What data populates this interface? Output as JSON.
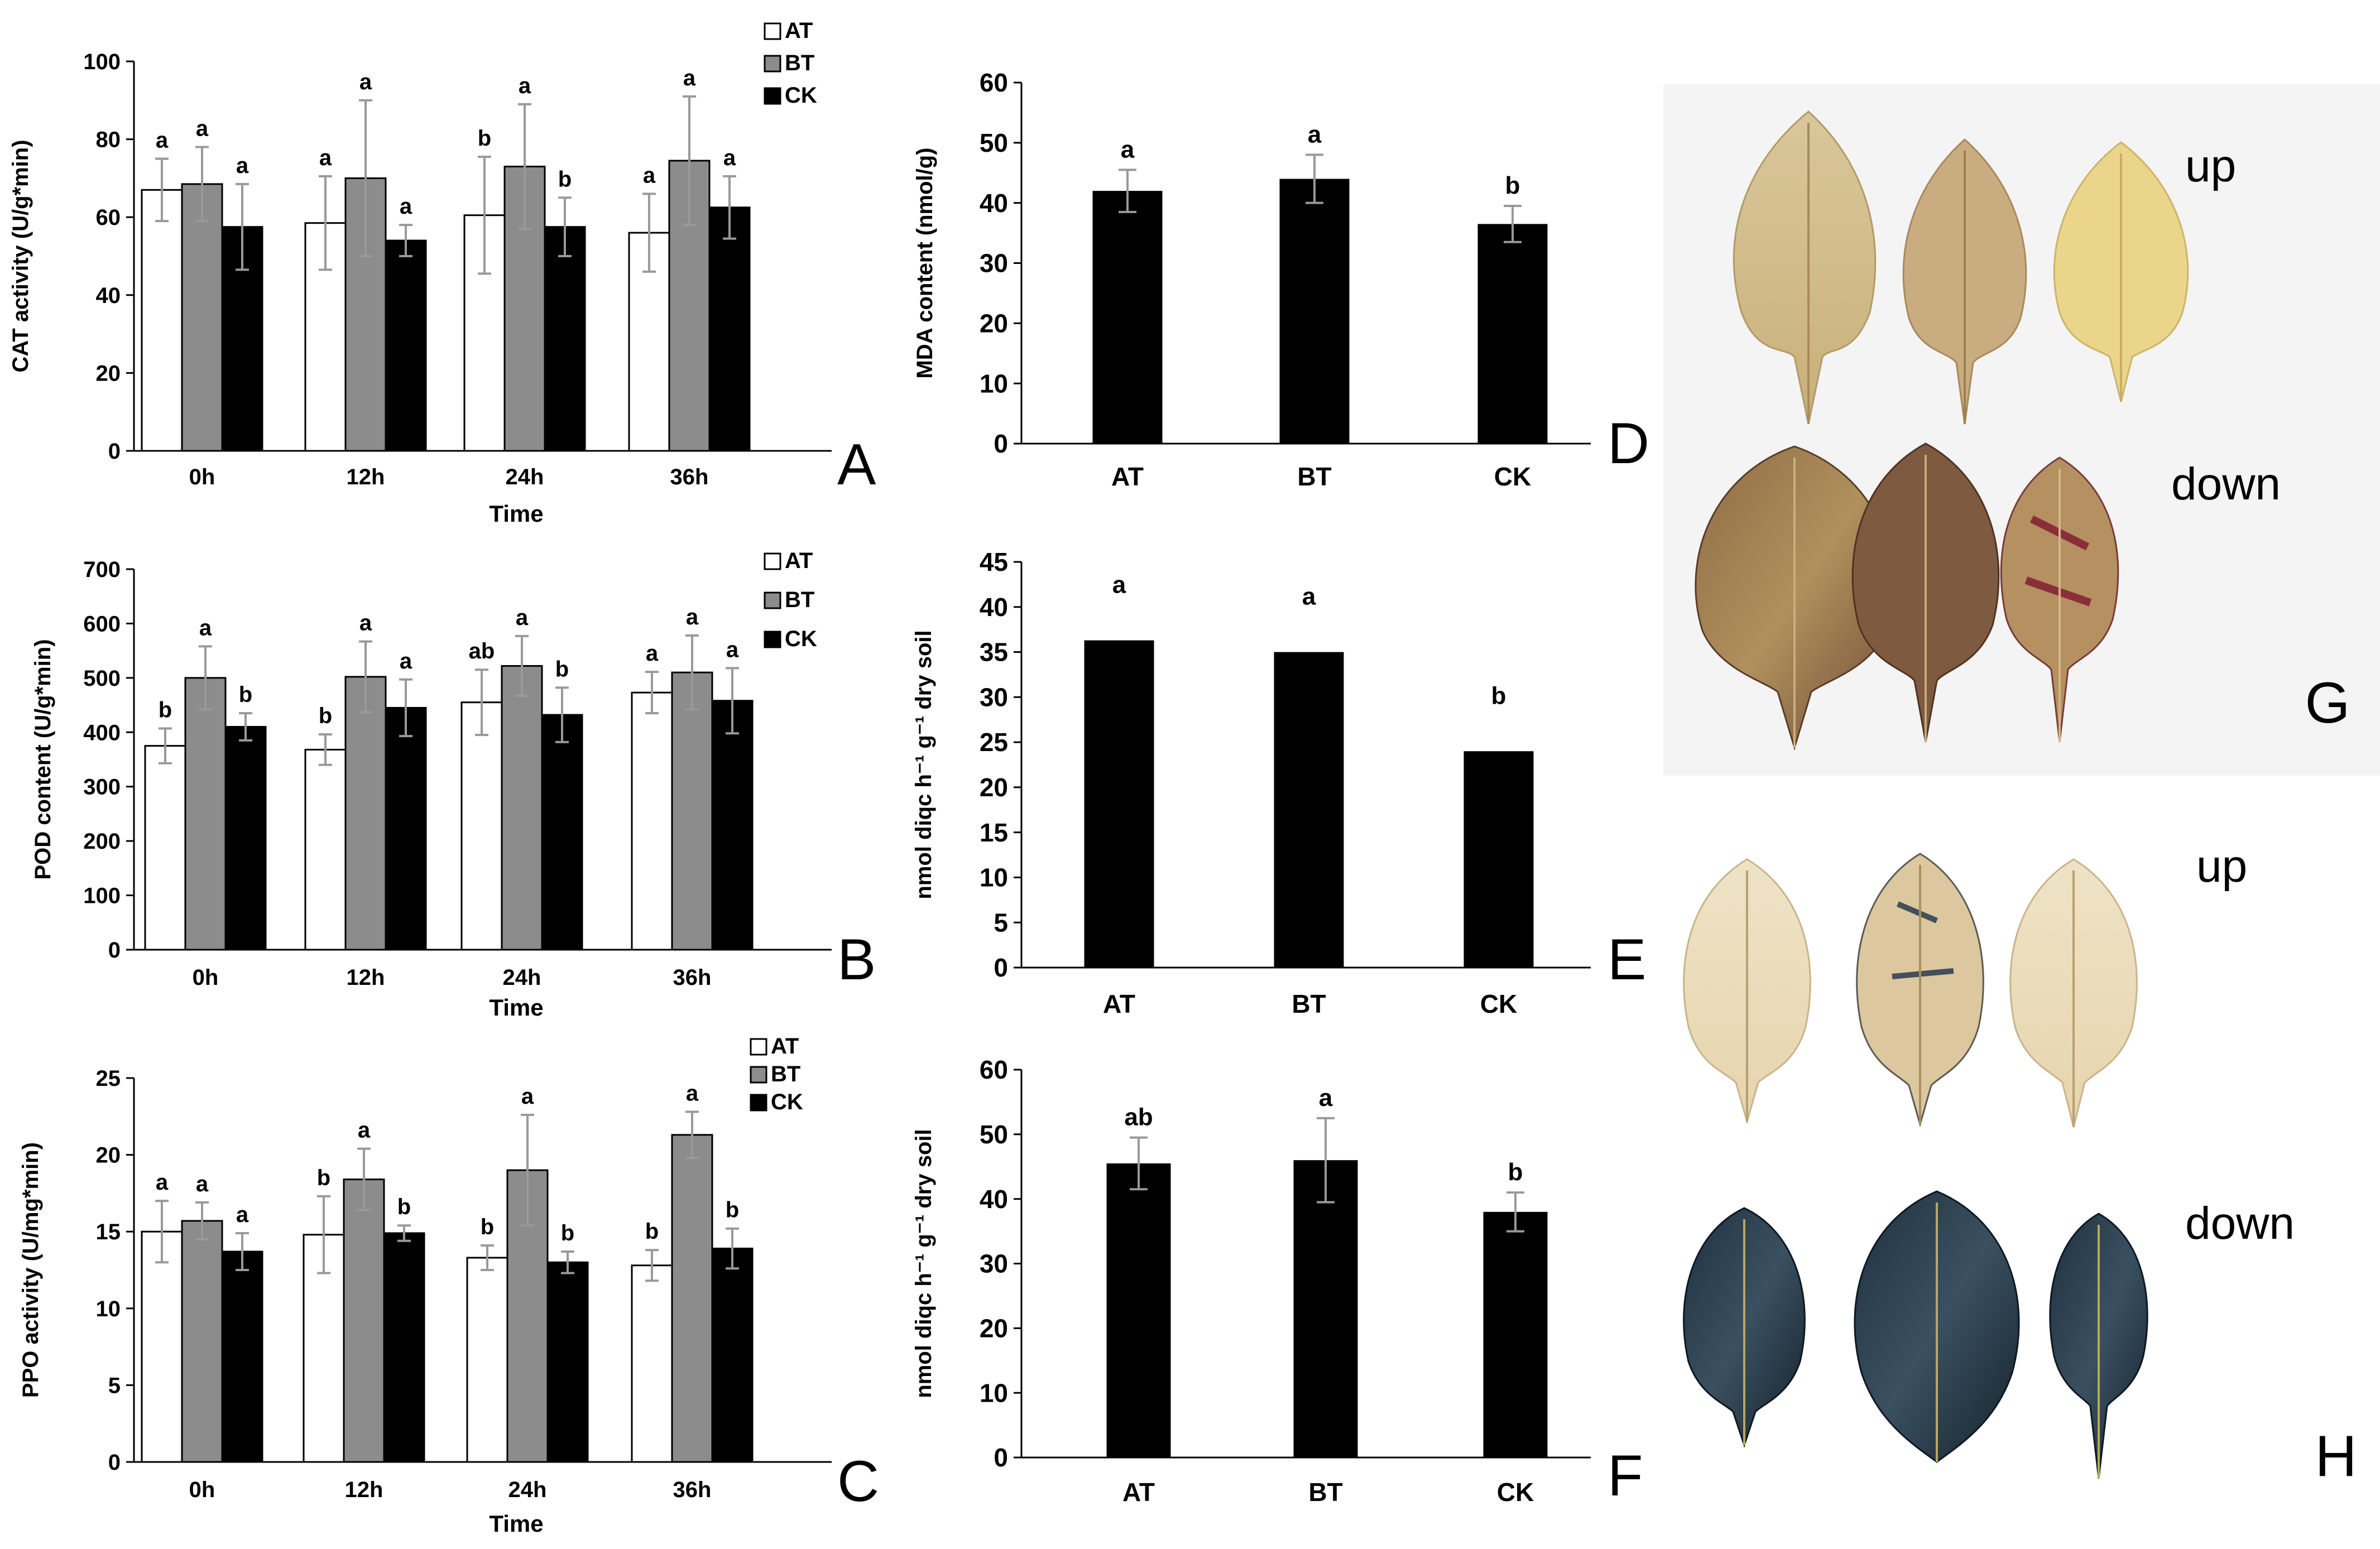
{
  "colors": {
    "AT": "#ffffff",
    "BT": "#8c8c8c",
    "CK": "#000000",
    "error_bar": "#999999"
  },
  "chart_data": [
    {
      "id": "A",
      "type": "bar",
      "panel_label": "A",
      "categories": [
        "0h",
        "12h",
        "24h",
        "36h"
      ],
      "xlabel": "Time",
      "ylabel": "CAT activity (U/g*min)",
      "ylim": [
        0,
        100
      ],
      "yticks": [
        0,
        20,
        40,
        60,
        80,
        100
      ],
      "series": [
        {
          "name": "AT",
          "values": [
            67,
            58.5,
            60.5,
            56
          ],
          "errors": [
            8,
            12,
            15,
            10
          ],
          "letters": [
            "a",
            "a",
            "b",
            "a"
          ]
        },
        {
          "name": "BT",
          "values": [
            68.5,
            70,
            73,
            74.5
          ],
          "errors": [
            9.5,
            20,
            16,
            16.5
          ],
          "letters": [
            "a",
            "a",
            "a",
            "a"
          ]
        },
        {
          "name": "CK",
          "values": [
            57.5,
            54,
            57.5,
            62.5
          ],
          "errors": [
            11,
            4,
            7.5,
            8
          ],
          "letters": [
            "a",
            "a",
            "b",
            "a"
          ]
        }
      ],
      "legend": [
        "AT",
        "BT",
        "CK"
      ]
    },
    {
      "id": "B",
      "type": "bar",
      "panel_label": "B",
      "categories": [
        "0h",
        "12h",
        "24h",
        "36h"
      ],
      "xlabel": "Time",
      "ylabel": "POD content (U/g*min)",
      "ylim": [
        0,
        700
      ],
      "yticks": [
        0,
        100,
        200,
        300,
        400,
        500,
        600,
        700
      ],
      "series": [
        {
          "name": "AT",
          "values": [
            375,
            368,
            455,
            473
          ],
          "errors": [
            32,
            28,
            60,
            38
          ],
          "letters": [
            "b",
            "b",
            "ab",
            "a"
          ]
        },
        {
          "name": "BT",
          "values": [
            500,
            502,
            522,
            510
          ],
          "errors": [
            58,
            65,
            55,
            68
          ],
          "letters": [
            "a",
            "a",
            "a",
            "a"
          ]
        },
        {
          "name": "CK",
          "values": [
            410,
            445,
            432,
            458
          ],
          "errors": [
            25,
            52,
            50,
            60
          ],
          "letters": [
            "b",
            "a",
            "b",
            "a"
          ]
        }
      ],
      "legend": [
        "AT",
        "BT",
        "CK"
      ]
    },
    {
      "id": "C",
      "type": "bar",
      "panel_label": "C",
      "categories": [
        "0h",
        "12h",
        "24h",
        "36h"
      ],
      "xlabel": "Time",
      "ylabel": "PPO activity (U/mg*min)",
      "ylim": [
        0,
        25
      ],
      "yticks": [
        0,
        5,
        10,
        15,
        20,
        25
      ],
      "series": [
        {
          "name": "AT",
          "values": [
            15,
            14.8,
            13.3,
            12.8
          ],
          "errors": [
            2,
            2.5,
            0.8,
            1
          ],
          "letters": [
            "a",
            "b",
            "b",
            "b"
          ]
        },
        {
          "name": "BT",
          "values": [
            15.7,
            18.4,
            19,
            21.3
          ],
          "errors": [
            1.2,
            2,
            3.6,
            1.5
          ],
          "letters": [
            "a",
            "a",
            "a",
            "a"
          ]
        },
        {
          "name": "CK",
          "values": [
            13.7,
            14.9,
            13,
            13.9
          ],
          "errors": [
            1.2,
            0.5,
            0.7,
            1.3
          ],
          "letters": [
            "a",
            "b",
            "b",
            "b"
          ]
        }
      ],
      "legend": [
        "AT",
        "BT",
        "CK"
      ]
    },
    {
      "id": "D",
      "type": "bar",
      "panel_label": "D",
      "categories": [
        "AT",
        "BT",
        "CK"
      ],
      "ylabel": "MDA content (nmol/g)",
      "ylim": [
        0,
        60
      ],
      "yticks": [
        0,
        10,
        20,
        30,
        40,
        50,
        60
      ],
      "values": [
        42,
        44,
        36.5
      ],
      "errors": [
        3.5,
        4,
        3
      ],
      "letters": [
        "a",
        "a",
        "b"
      ]
    },
    {
      "id": "E",
      "type": "bar",
      "panel_label": "E",
      "categories": [
        "AT",
        "BT",
        "CK"
      ],
      "ylabel": "nmol diqc h⁻¹ g⁻¹ dry soil",
      "ylim": [
        0,
        45
      ],
      "yticks": [
        0,
        5,
        10,
        15,
        20,
        25,
        30,
        35,
        40,
        45
      ],
      "values": [
        36.3,
        35,
        24
      ],
      "letters": [
        "a",
        "a",
        "b"
      ]
    },
    {
      "id": "F",
      "type": "bar",
      "panel_label": "F",
      "categories": [
        "AT",
        "BT",
        "CK"
      ],
      "ylabel": "nmol diqc h⁻¹ g⁻¹ dry soil",
      "ylim": [
        0,
        60
      ],
      "yticks": [
        0,
        10,
        20,
        30,
        40,
        50,
        60
      ],
      "values": [
        45.5,
        46,
        38
      ],
      "errors": [
        4,
        6.5,
        3
      ],
      "letters": [
        "ab",
        "a",
        "b"
      ]
    }
  ],
  "photos": {
    "G": {
      "panel_label": "G",
      "top_label": "up",
      "bottom_label": "down"
    },
    "H": {
      "panel_label": "H",
      "top_label": "up",
      "bottom_label": "down"
    }
  }
}
